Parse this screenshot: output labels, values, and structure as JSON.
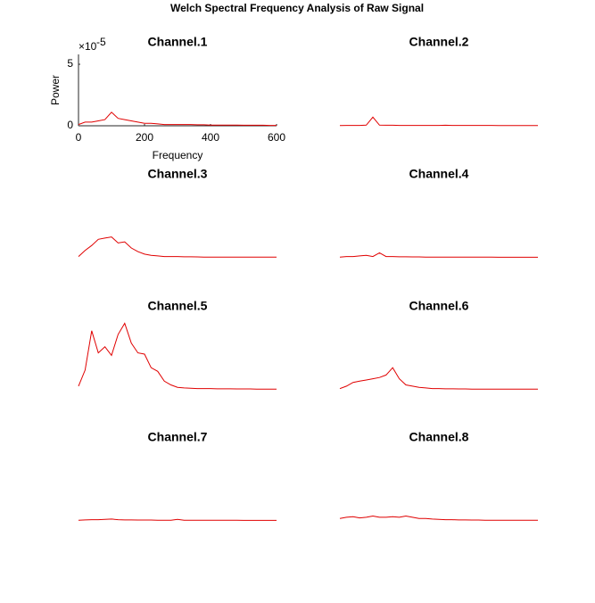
{
  "title": "Welch Spectral Frequency Analysis of Raw Signal",
  "chart_data": [
    {
      "type": "line",
      "title": "Channel.1",
      "axis_visible": true,
      "xlabel": "Frequency",
      "ylabel": "Power",
      "y_multiplier": "×10",
      "y_multiplier_exponent": "-5",
      "xlim": [
        0,
        600
      ],
      "ylim": [
        0,
        5.8
      ],
      "xticks": [
        0,
        200,
        400,
        600
      ],
      "yticks": [
        0,
        5
      ],
      "color": "#e00000",
      "x": [
        0,
        20,
        40,
        60,
        80,
        100,
        120,
        140,
        160,
        180,
        200,
        220,
        240,
        260,
        280,
        300,
        320,
        340,
        360,
        380,
        400,
        420,
        440,
        460,
        480,
        500,
        520,
        540,
        560,
        580,
        600
      ],
      "values": [
        0.1,
        0.3,
        0.3,
        0.4,
        0.5,
        1.1,
        0.6,
        0.5,
        0.4,
        0.3,
        0.2,
        0.2,
        0.15,
        0.1,
        0.1,
        0.1,
        0.1,
        0.1,
        0.08,
        0.08,
        0.06,
        0.06,
        0.05,
        0.05,
        0.05,
        0.04,
        0.04,
        0.04,
        0.04,
        0.03,
        0.03
      ]
    },
    {
      "type": "line",
      "title": "Channel.2",
      "axis_visible": false,
      "xlim": [
        0,
        600
      ],
      "ylim": [
        0,
        5.8
      ],
      "color": "#e00000",
      "x": [
        0,
        20,
        40,
        60,
        80,
        100,
        120,
        140,
        160,
        180,
        200,
        220,
        240,
        260,
        280,
        300,
        320,
        340,
        360,
        380,
        400,
        420,
        440,
        460,
        480,
        500,
        520,
        540,
        560,
        580,
        600
      ],
      "values": [
        0.02,
        0.03,
        0.03,
        0.03,
        0.05,
        0.7,
        0.05,
        0.04,
        0.04,
        0.03,
        0.03,
        0.03,
        0.03,
        0.03,
        0.03,
        0.03,
        0.04,
        0.03,
        0.03,
        0.03,
        0.03,
        0.03,
        0.03,
        0.03,
        0.02,
        0.02,
        0.02,
        0.02,
        0.02,
        0.02,
        0.02
      ]
    },
    {
      "type": "line",
      "title": "Channel.3",
      "axis_visible": false,
      "xlim": [
        0,
        600
      ],
      "ylim": [
        0,
        5.8
      ],
      "color": "#e00000",
      "x": [
        0,
        20,
        40,
        60,
        80,
        100,
        120,
        140,
        160,
        180,
        200,
        220,
        240,
        260,
        280,
        300,
        320,
        340,
        360,
        380,
        400,
        420,
        440,
        460,
        480,
        500,
        520,
        540,
        560,
        580,
        600
      ],
      "values": [
        0.1,
        0.6,
        1.0,
        1.5,
        1.6,
        1.7,
        1.2,
        1.3,
        0.8,
        0.5,
        0.3,
        0.2,
        0.15,
        0.1,
        0.1,
        0.1,
        0.08,
        0.08,
        0.07,
        0.06,
        0.06,
        0.06,
        0.05,
        0.05,
        0.05,
        0.05,
        0.05,
        0.05,
        0.05,
        0.05,
        0.05
      ]
    },
    {
      "type": "line",
      "title": "Channel.4",
      "axis_visible": false,
      "xlim": [
        0,
        600
      ],
      "ylim": [
        0,
        5.8
      ],
      "color": "#e00000",
      "x": [
        0,
        20,
        40,
        60,
        80,
        100,
        120,
        140,
        160,
        180,
        200,
        220,
        240,
        260,
        280,
        300,
        320,
        340,
        360,
        380,
        400,
        420,
        440,
        460,
        480,
        500,
        520,
        540,
        560,
        580,
        600
      ],
      "values": [
        0.05,
        0.1,
        0.1,
        0.15,
        0.2,
        0.1,
        0.4,
        0.1,
        0.1,
        0.08,
        0.08,
        0.07,
        0.07,
        0.06,
        0.06,
        0.06,
        0.06,
        0.05,
        0.05,
        0.06,
        0.05,
        0.05,
        0.05,
        0.05,
        0.04,
        0.04,
        0.04,
        0.04,
        0.04,
        0.04,
        0.04
      ]
    },
    {
      "type": "line",
      "title": "Channel.5",
      "axis_visible": false,
      "xlim": [
        0,
        600
      ],
      "ylim": [
        0,
        5.8
      ],
      "color": "#e00000",
      "x": [
        0,
        20,
        40,
        60,
        80,
        100,
        120,
        140,
        160,
        180,
        200,
        220,
        240,
        260,
        280,
        300,
        320,
        340,
        360,
        380,
        400,
        420,
        440,
        460,
        480,
        500,
        520,
        540,
        560,
        580,
        600
      ],
      "values": [
        0.3,
        1.6,
        4.8,
        3.0,
        3.5,
        2.8,
        4.5,
        5.4,
        3.8,
        3.0,
        2.9,
        1.8,
        1.5,
        0.7,
        0.4,
        0.2,
        0.15,
        0.12,
        0.1,
        0.1,
        0.1,
        0.08,
        0.08,
        0.08,
        0.07,
        0.07,
        0.07,
        0.06,
        0.06,
        0.06,
        0.06
      ]
    },
    {
      "type": "line",
      "title": "Channel.6",
      "axis_visible": false,
      "xlim": [
        0,
        600
      ],
      "ylim": [
        0,
        5.8
      ],
      "color": "#e00000",
      "x": [
        0,
        20,
        40,
        60,
        80,
        100,
        120,
        140,
        160,
        180,
        200,
        220,
        240,
        260,
        280,
        300,
        320,
        340,
        360,
        380,
        400,
        420,
        440,
        460,
        480,
        500,
        520,
        540,
        560,
        580,
        600
      ],
      "values": [
        0.1,
        0.3,
        0.6,
        0.7,
        0.8,
        0.9,
        1.0,
        1.2,
        1.8,
        0.9,
        0.4,
        0.3,
        0.2,
        0.15,
        0.1,
        0.1,
        0.08,
        0.08,
        0.07,
        0.07,
        0.06,
        0.06,
        0.06,
        0.05,
        0.05,
        0.05,
        0.05,
        0.05,
        0.05,
        0.05,
        0.05
      ]
    },
    {
      "type": "line",
      "title": "Channel.7",
      "axis_visible": false,
      "xlim": [
        0,
        600
      ],
      "ylim": [
        0,
        5.8
      ],
      "color": "#e00000",
      "x": [
        0,
        20,
        40,
        60,
        80,
        100,
        120,
        140,
        160,
        180,
        200,
        220,
        240,
        260,
        280,
        300,
        320,
        340,
        360,
        380,
        400,
        420,
        440,
        460,
        480,
        500,
        520,
        540,
        560,
        580,
        600
      ],
      "values": [
        0.05,
        0.08,
        0.1,
        0.1,
        0.12,
        0.15,
        0.1,
        0.08,
        0.08,
        0.07,
        0.07,
        0.07,
        0.06,
        0.06,
        0.06,
        0.12,
        0.06,
        0.05,
        0.05,
        0.05,
        0.05,
        0.05,
        0.05,
        0.05,
        0.05,
        0.04,
        0.04,
        0.04,
        0.04,
        0.04,
        0.04
      ]
    },
    {
      "type": "line",
      "title": "Channel.8",
      "axis_visible": false,
      "xlim": [
        0,
        600
      ],
      "ylim": [
        0,
        5.8
      ],
      "color": "#e00000",
      "x": [
        0,
        20,
        40,
        60,
        80,
        100,
        120,
        140,
        160,
        180,
        200,
        220,
        240,
        260,
        280,
        300,
        320,
        340,
        360,
        380,
        400,
        420,
        440,
        460,
        480,
        500,
        520,
        540,
        560,
        580,
        600
      ],
      "values": [
        0.2,
        0.3,
        0.35,
        0.25,
        0.3,
        0.4,
        0.3,
        0.3,
        0.35,
        0.3,
        0.4,
        0.3,
        0.2,
        0.2,
        0.15,
        0.12,
        0.1,
        0.1,
        0.08,
        0.08,
        0.07,
        0.07,
        0.06,
        0.06,
        0.06,
        0.05,
        0.05,
        0.05,
        0.05,
        0.05,
        0.05
      ]
    }
  ]
}
